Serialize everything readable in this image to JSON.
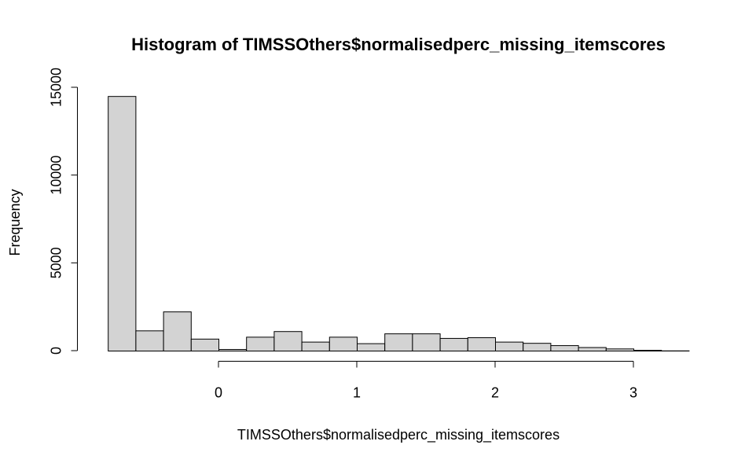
{
  "chart_data": {
    "type": "bar",
    "title": "Histogram of TIMSSOthers$normalisedperc_missing_itemscores",
    "xlabel": "TIMSSOthers$normalisedperc_missing_itemscores",
    "ylabel": "Frequency",
    "bin_edges": [
      -0.8,
      -0.6,
      -0.4,
      -0.2,
      0.0,
      0.2,
      0.4,
      0.6,
      0.8,
      1.0,
      1.2,
      1.4,
      1.6,
      1.8,
      2.0,
      2.2,
      2.4,
      2.6,
      2.8,
      3.0,
      3.2,
      3.4
    ],
    "values": [
      14500,
      1150,
      2230,
      680,
      90,
      790,
      1110,
      510,
      790,
      420,
      980,
      980,
      720,
      760,
      510,
      440,
      310,
      200,
      120,
      40,
      10
    ],
    "xlim": [
      -0.8,
      3.4
    ],
    "ylim": [
      0,
      15000
    ],
    "x_ticks": [
      0,
      1,
      2,
      3
    ],
    "x_tick_labels": [
      "0",
      "1",
      "2",
      "3"
    ],
    "y_ticks": [
      0,
      5000,
      10000,
      15000
    ],
    "y_tick_labels": [
      "0",
      "5000",
      "10000",
      "15000"
    ],
    "colors": {
      "bar_fill": "#d3d3d3",
      "bar_stroke": "#000000",
      "background": "#ffffff"
    },
    "grid": false
  }
}
